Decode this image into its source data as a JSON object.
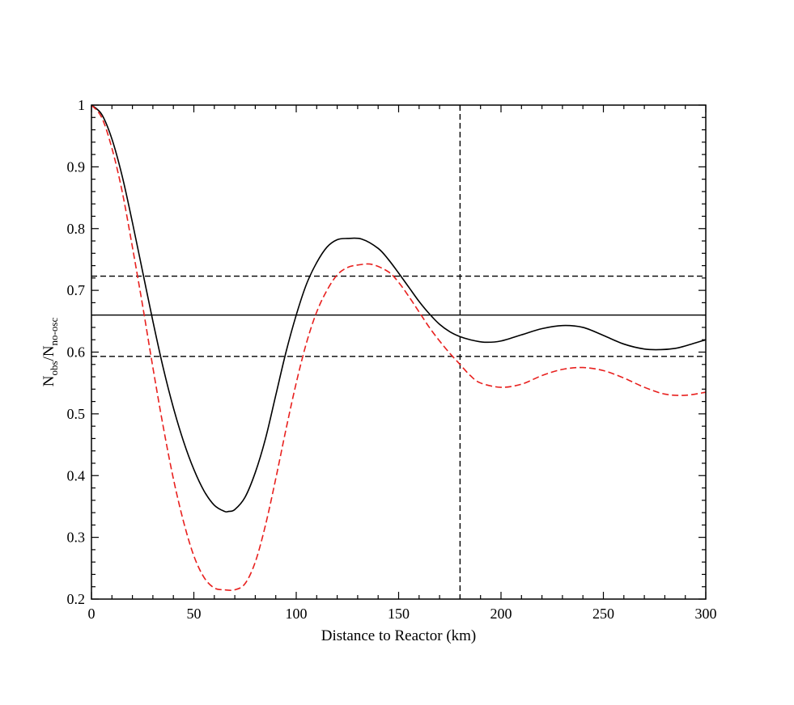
{
  "chart_data": {
    "type": "line",
    "title": "",
    "xlabel": "Distance to Reactor (km)",
    "ylabel": {
      "parts": [
        {
          "text": "N",
          "sub": false
        },
        {
          "text": "obs",
          "sub": true
        },
        {
          "text": "/N",
          "sub": false
        },
        {
          "text": "no-osc",
          "sub": true
        }
      ]
    },
    "xlim": [
      0,
      300
    ],
    "ylim": [
      0.2,
      1.0
    ],
    "xticks": [
      0,
      50,
      100,
      150,
      200,
      250,
      300
    ],
    "yticks": [
      0.2,
      0.3,
      0.4,
      0.5,
      0.6,
      0.7,
      0.8,
      0.9,
      1.0
    ],
    "xtick_labels": [
      "0",
      "50",
      "100",
      "150",
      "200",
      "250",
      "300"
    ],
    "ytick_labels": [
      "0.2",
      "0.3",
      "0.4",
      "0.5",
      "0.6",
      "0.7",
      "0.8",
      "0.9",
      "1"
    ],
    "x_minor_step": 10,
    "y_minor_step": 0.02,
    "grid": false,
    "legend": "none",
    "series": [
      {
        "style": "solid",
        "color": "#000000",
        "x": [
          0,
          5,
          10,
          15,
          20,
          25,
          30,
          35,
          40,
          45,
          50,
          55,
          60,
          65,
          67,
          70,
          75,
          80,
          85,
          90,
          95,
          100,
          105,
          110,
          115,
          120,
          125,
          132,
          140,
          145,
          150,
          155,
          160,
          165,
          170,
          175,
          180,
          185,
          192,
          200,
          210,
          220,
          230,
          240,
          250,
          260,
          270,
          278,
          285,
          290,
          300
        ],
        "y": [
          1.0,
          0.985,
          0.945,
          0.885,
          0.81,
          0.73,
          0.65,
          0.575,
          0.51,
          0.455,
          0.41,
          0.375,
          0.352,
          0.342,
          0.342,
          0.345,
          0.365,
          0.405,
          0.46,
          0.53,
          0.6,
          0.66,
          0.71,
          0.745,
          0.77,
          0.782,
          0.784,
          0.783,
          0.768,
          0.75,
          0.728,
          0.705,
          0.682,
          0.662,
          0.645,
          0.633,
          0.625,
          0.62,
          0.616,
          0.618,
          0.628,
          0.638,
          0.643,
          0.64,
          0.627,
          0.613,
          0.605,
          0.604,
          0.606,
          0.61,
          0.62
        ]
      },
      {
        "style": "dashed",
        "color": "#e8201e",
        "x": [
          0,
          5,
          10,
          15,
          20,
          25,
          30,
          35,
          40,
          45,
          50,
          55,
          60,
          65,
          70,
          75,
          80,
          85,
          90,
          95,
          100,
          105,
          110,
          115,
          120,
          125,
          130,
          137,
          145,
          150,
          155,
          160,
          165,
          170,
          175,
          180,
          185,
          190,
          200,
          210,
          220,
          230,
          240,
          250,
          260,
          270,
          280,
          290,
          300
        ],
        "y": [
          1.0,
          0.98,
          0.93,
          0.86,
          0.77,
          0.675,
          0.575,
          0.48,
          0.395,
          0.325,
          0.27,
          0.235,
          0.218,
          0.215,
          0.215,
          0.225,
          0.26,
          0.32,
          0.395,
          0.475,
          0.55,
          0.615,
          0.665,
          0.7,
          0.725,
          0.737,
          0.741,
          0.742,
          0.73,
          0.713,
          0.69,
          0.665,
          0.64,
          0.618,
          0.598,
          0.58,
          0.562,
          0.55,
          0.543,
          0.548,
          0.562,
          0.572,
          0.575,
          0.57,
          0.558,
          0.543,
          0.532,
          0.53,
          0.535
        ]
      }
    ],
    "reference_lines": [
      {
        "orientation": "horizontal",
        "value": 0.66,
        "style": "solid",
        "color": "#000000"
      },
      {
        "orientation": "horizontal",
        "value": 0.723,
        "style": "dashed",
        "color": "#000000"
      },
      {
        "orientation": "horizontal",
        "value": 0.593,
        "style": "dashed",
        "color": "#000000"
      },
      {
        "orientation": "vertical",
        "value": 180,
        "style": "dashed",
        "color": "#000000"
      }
    ]
  }
}
